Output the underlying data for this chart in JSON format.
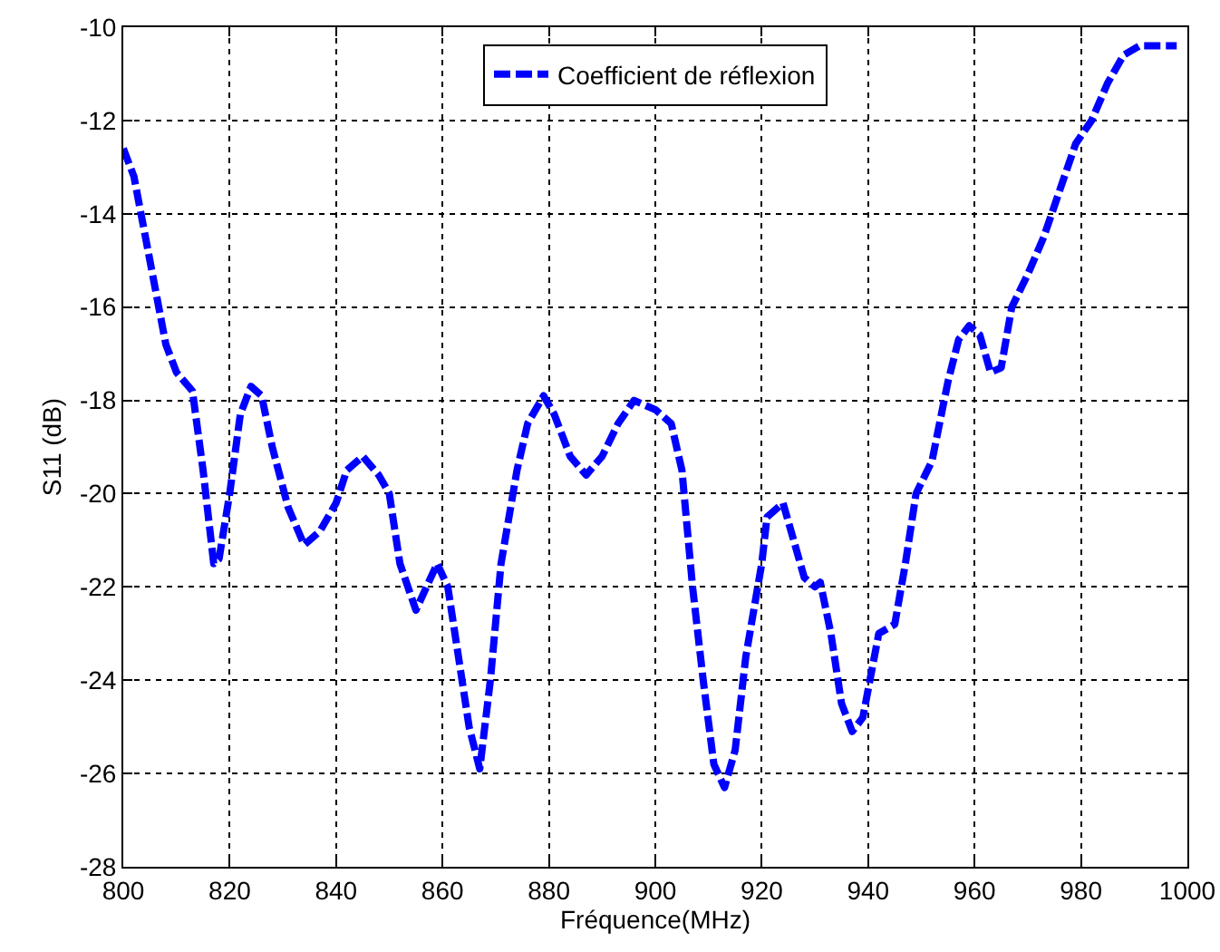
{
  "chart_data": {
    "type": "line",
    "xlabel": "Fréquence(MHz)",
    "ylabel": "S11 (dB)",
    "x": [
      800,
      802,
      805,
      808,
      810,
      813,
      815,
      817,
      818,
      820,
      822,
      824,
      826,
      828,
      831,
      834,
      837,
      840,
      842,
      845,
      848,
      850,
      852,
      855,
      857,
      859,
      861,
      863,
      865,
      867,
      869,
      871,
      874,
      876,
      879,
      881,
      884,
      887,
      890,
      893,
      896,
      900,
      903,
      905,
      907,
      909,
      911,
      913,
      915,
      917,
      920,
      921,
      924,
      926,
      928,
      930,
      931,
      933,
      935,
      937,
      939,
      942,
      945,
      947,
      949,
      952,
      955,
      957,
      959,
      961,
      963,
      965,
      967,
      970,
      973,
      976,
      979,
      982,
      985,
      988,
      991,
      995,
      998
    ],
    "series": [
      {
        "name": "Coefficient de réflexion",
        "color": "#0000ff",
        "values": [
          -12.6,
          -13.2,
          -15,
          -16.8,
          -17.4,
          -17.8,
          -19.5,
          -21.5,
          -21.4,
          -20,
          -18.3,
          -17.7,
          -17.9,
          -19,
          -20.3,
          -21.1,
          -20.8,
          -20.2,
          -19.5,
          -19.2,
          -19.6,
          -20,
          -21.5,
          -22.5,
          -22,
          -21.5,
          -22,
          -23.5,
          -25,
          -25.9,
          -24,
          -21.5,
          -19.5,
          -18.5,
          -17.9,
          -18.3,
          -19.2,
          -19.6,
          -19.2,
          -18.5,
          -18,
          -18.2,
          -18.5,
          -19.5,
          -22,
          -24,
          -25.8,
          -26.3,
          -25.5,
          -23.5,
          -21.5,
          -20.5,
          -20.2,
          -21,
          -21.8,
          -22,
          -21.9,
          -23,
          -24.5,
          -25.1,
          -24.8,
          -23,
          -22.8,
          -21.5,
          -20,
          -19.3,
          -17.6,
          -16.7,
          -16.4,
          -16.6,
          -17.4,
          -17.3,
          -16,
          -15.3,
          -14.5,
          -13.5,
          -12.5,
          -12,
          -11.2,
          -10.6,
          -10.4,
          -10.4,
          -10.4
        ]
      }
    ],
    "xlim": [
      800,
      1000
    ],
    "xticks": [
      800,
      820,
      840,
      860,
      880,
      900,
      920,
      940,
      960,
      980,
      1000
    ],
    "ylim": [
      -28,
      -10
    ],
    "yticks": [
      -28,
      -26,
      -24,
      -22,
      -20,
      -18,
      -16,
      -14,
      -12,
      -10
    ],
    "grid": true,
    "legend": "top",
    "line_style": "dashed"
  }
}
